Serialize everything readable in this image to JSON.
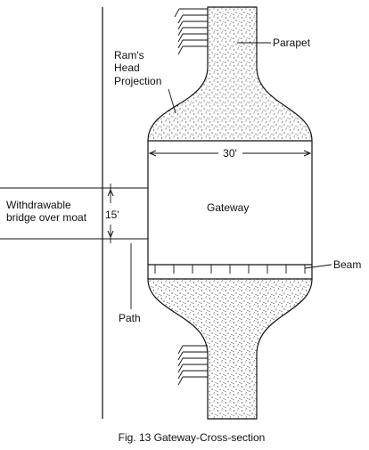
{
  "labels": {
    "parapet": "Parapet",
    "rams_head_line1": "Ram's",
    "rams_head_line2": "Head",
    "rams_head_line3": "Projection",
    "width_dim": "30'",
    "gateway": "Gateway",
    "bridge_line1": "Withdrawable",
    "bridge_line2": "bridge over moat",
    "height_dim": "15'",
    "beam": "Beam",
    "path": "Path"
  },
  "caption": "Fig. 13 Gateway-Cross-section",
  "colors": {
    "ink": "#111111",
    "background": "#ffffff",
    "stipple": "#222222"
  }
}
